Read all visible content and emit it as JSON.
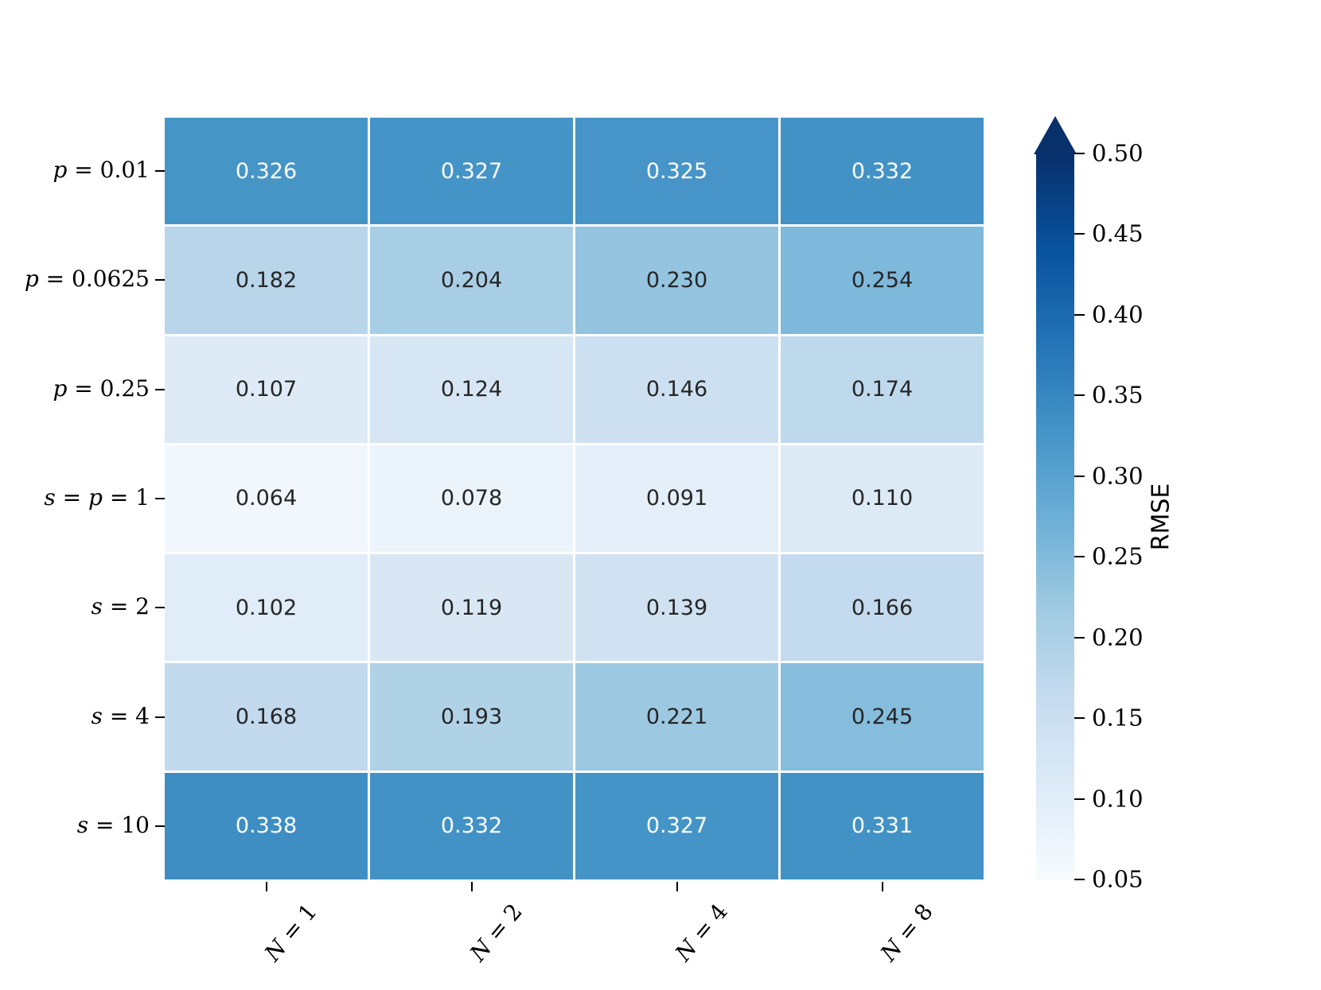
{
  "figure": {
    "background": "#ffffff"
  },
  "chart_data": {
    "type": "heatmap",
    "title": "",
    "row_labels": [
      "p = 0.01",
      "p = 0.0625",
      "p = 0.25",
      "s = p = 1",
      "s = 2",
      "s = 4",
      "s = 10"
    ],
    "col_labels": [
      "N = 1",
      "N = 2",
      "N = 4",
      "N = 8"
    ],
    "values": [
      [
        0.326,
        0.327,
        0.325,
        0.332
      ],
      [
        0.182,
        0.204,
        0.23,
        0.254
      ],
      [
        0.107,
        0.124,
        0.146,
        0.174
      ],
      [
        0.064,
        0.078,
        0.091,
        0.11
      ],
      [
        0.102,
        0.119,
        0.139,
        0.166
      ],
      [
        0.168,
        0.193,
        0.221,
        0.245
      ],
      [
        0.338,
        0.332,
        0.327,
        0.331
      ]
    ],
    "annotations": [
      [
        "0.326",
        "0.327",
        "0.325",
        "0.332"
      ],
      [
        "0.182",
        "0.204",
        "0.230",
        "0.254"
      ],
      [
        "0.107",
        "0.124",
        "0.146",
        "0.174"
      ],
      [
        "0.064",
        "0.078",
        "0.091",
        "0.110"
      ],
      [
        "0.102",
        "0.119",
        "0.139",
        "0.166"
      ],
      [
        "0.168",
        "0.193",
        "0.221",
        "0.245"
      ],
      [
        "0.338",
        "0.332",
        "0.327",
        "0.331"
      ]
    ],
    "colorbar": {
      "label": "RMSE",
      "tick_labels": [
        "0.50",
        "0.45",
        "0.40",
        "0.35",
        "0.30",
        "0.25",
        "0.20",
        "0.15",
        "0.10",
        "0.05"
      ],
      "tick_values": [
        0.5,
        0.45,
        0.4,
        0.35,
        0.3,
        0.25,
        0.2,
        0.15,
        0.1,
        0.05
      ],
      "vmin": 0.05,
      "vmax": 0.5,
      "extend": "max"
    },
    "colormap": {
      "name": "Blues",
      "anchors": [
        "#f7fbff",
        "#deebf7",
        "#c6dbef",
        "#9ecae1",
        "#6baed6",
        "#4292c6",
        "#2171b5",
        "#08519c",
        "#08306b"
      ]
    },
    "annotation_colors": {
      "light": "#ffffff",
      "dark": "#262626"
    },
    "layout_hints": {
      "grid": "off",
      "legend_position": "colorbar-right",
      "x_tick_rotation_deg": 50
    }
  }
}
